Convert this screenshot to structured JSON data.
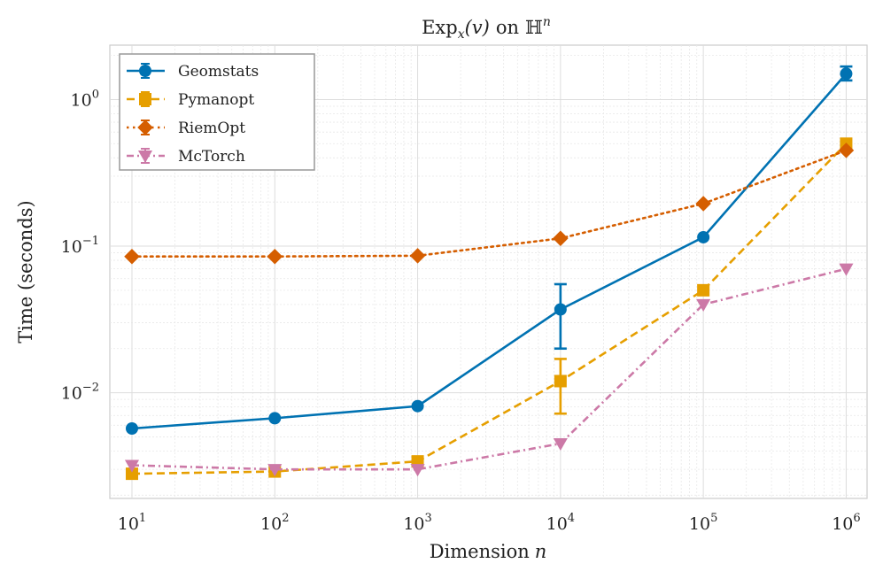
{
  "chart_data": {
    "type": "line",
    "title": {
      "base": "Exp",
      "sub": "x",
      "arg": "(v)",
      "on": "on",
      "space": "ℍ",
      "space_sup": "n"
    },
    "xlabel": {
      "text": "Dimension",
      "var": "n"
    },
    "ylabel": "Time (seconds)",
    "xscale": "log",
    "yscale": "log",
    "xlim": [
      7,
      1400000.0
    ],
    "ylim": [
      0.0019,
      2.35
    ],
    "x": [
      10,
      100,
      1000,
      10000,
      100000,
      1000000
    ],
    "xticks": [
      {
        "base": "10",
        "exp": "1"
      },
      {
        "base": "10",
        "exp": "2"
      },
      {
        "base": "10",
        "exp": "3"
      },
      {
        "base": "10",
        "exp": "4"
      },
      {
        "base": "10",
        "exp": "5"
      },
      {
        "base": "10",
        "exp": "6"
      }
    ],
    "yticks": [
      {
        "base": "10",
        "exp": "−2"
      },
      {
        "base": "10",
        "exp": "−1"
      },
      {
        "base": "10",
        "exp": "0"
      }
    ],
    "grid": true,
    "legend_position": "top-left",
    "series": [
      {
        "name": "Geomstats",
        "color": "#0072b2",
        "marker": "circle",
        "dash": "solid",
        "values": [
          0.0057,
          0.0067,
          0.0081,
          0.037,
          0.115,
          1.5
        ],
        "err": [
          null,
          null,
          null,
          [
            0.02,
            0.055
          ],
          null,
          [
            1.35,
            1.68
          ]
        ]
      },
      {
        "name": "Pymanopt",
        "color": "#e69f00",
        "marker": "square",
        "dash": "dashed",
        "values": [
          0.0028,
          0.0029,
          0.0034,
          0.012,
          0.05,
          0.5
        ],
        "err": [
          null,
          null,
          null,
          [
            0.0072,
            0.017
          ],
          null,
          null
        ]
      },
      {
        "name": "RiemOpt",
        "color": "#d55e00",
        "marker": "diamond",
        "dash": "dotted",
        "values": [
          0.085,
          0.085,
          0.086,
          0.113,
          0.195,
          0.45
        ],
        "err": [
          null,
          null,
          null,
          null,
          null,
          null
        ]
      },
      {
        "name": "McTorch",
        "color": "#cc79a7",
        "marker": "triangle-down",
        "dash": "dashdot",
        "values": [
          0.0032,
          0.003,
          0.003,
          0.0045,
          0.04,
          0.07
        ],
        "err": [
          null,
          null,
          null,
          null,
          null,
          null
        ]
      }
    ]
  }
}
